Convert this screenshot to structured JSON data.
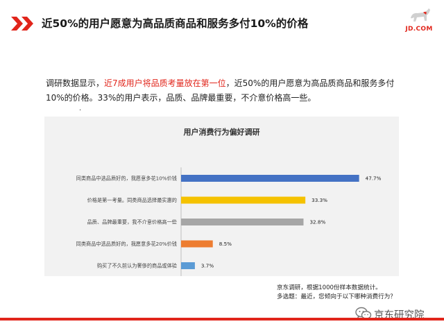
{
  "header": {
    "title": "近50%的用户愿意为高品质商品和服务多付10%的价格",
    "logo_text": "JD.COM"
  },
  "description": {
    "intro": "调研数据显示，",
    "highlight": "近7成用户将品质考量放在第一位",
    "rest": "，近50%的用户愿意为高品质商品和服务多付10%的价格。33%的用户表示，品质、品牌最重要，不介意价格高一些。",
    "dot": "."
  },
  "chart_data": {
    "type": "bar",
    "orientation": "horizontal",
    "title": "用户消费行为偏好调研",
    "categories": [
      "同类商品中选品质好的，我愿意多花10%价钱",
      "价格是第一考量。同类商品选择最实惠的",
      "品质、品牌最重要，我不介意价格高一些",
      "同类商品中选品质好的，我愿意多花20%价钱",
      "购买了不久前认为奢侈的商品或体验"
    ],
    "values": [
      47.7,
      33.3,
      32.8,
      8.5,
      3.7
    ],
    "value_labels": [
      "47.7%",
      "33.3%",
      "32.8%",
      "8.5%",
      "3.7%"
    ],
    "bar_colors": [
      "#4472c4",
      "#f5c200",
      "#a6a6a6",
      "#ed7d31",
      "#5b9bd5"
    ],
    "xlim": [
      0,
      50
    ],
    "grid": false,
    "legend": "none"
  },
  "footnote": {
    "line1": "京东调研，根据1000份样本数据统计。",
    "line2": "多选题：最近，您倾向于以下哪种消费行为？"
  },
  "watermark": {
    "text": "京东研究院",
    "icon": "wechat-icon"
  },
  "colors": {
    "accent": "#e1251b",
    "panel": "#f2f2f2"
  }
}
